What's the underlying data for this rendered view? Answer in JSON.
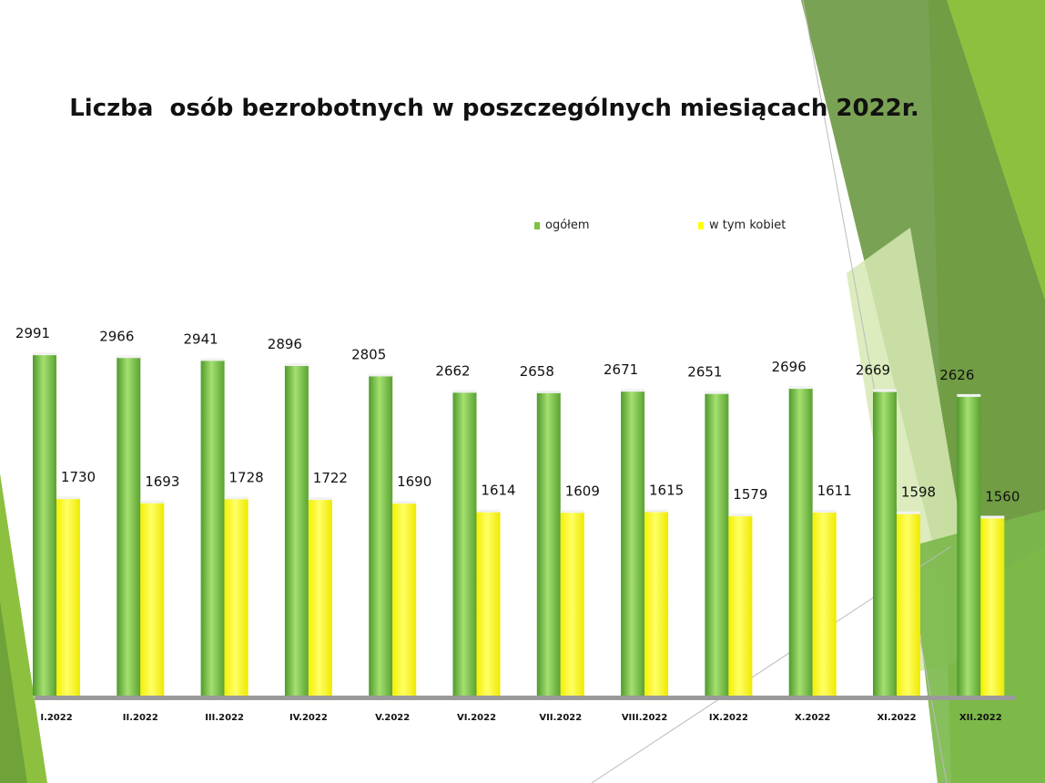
{
  "chart_data": {
    "type": "bar",
    "title": "Liczba  osób bezrobotnych w poszczególnych miesiącach 2022r.",
    "categories": [
      "I.2022",
      "II.2022",
      "III.2022",
      "IV.2022",
      "V.2022",
      "VI.2022",
      "VII.2022",
      "VIII.2022",
      "IX.2022",
      "X.2022",
      "XI.2022",
      "XII.2022"
    ],
    "series": [
      {
        "name": "ogółem",
        "color": "#7dc242",
        "values": [
          2991,
          2966,
          2941,
          2896,
          2805,
          2662,
          2658,
          2671,
          2651,
          2696,
          2669,
          2626
        ]
      },
      {
        "name": "w tym kobiet",
        "color": "#ffff00",
        "values": [
          1730,
          1693,
          1728,
          1722,
          1690,
          1614,
          1609,
          1615,
          1579,
          1611,
          1598,
          1560
        ]
      }
    ],
    "ylim": [
      0,
      3000
    ],
    "legend_position": "top-right",
    "grid": false
  }
}
